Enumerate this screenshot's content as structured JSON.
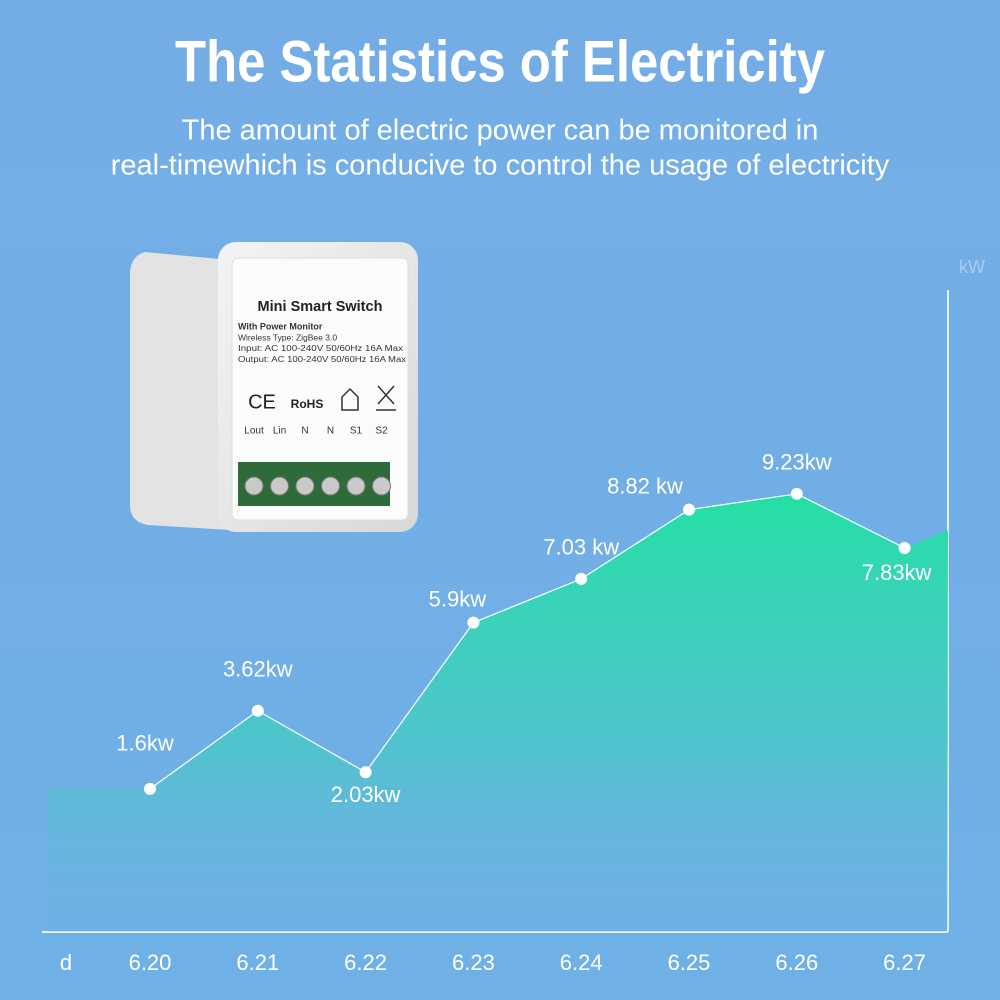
{
  "chart_data": {
    "type": "area",
    "title": "The Statistics of Electricity",
    "subtitle": [
      "The amount of electric power can be monitored in",
      "real-timewhich is conducive to control the usage of electricity"
    ],
    "x_label": "d",
    "y_label": "kW",
    "categories": [
      "6.20",
      "6.21",
      "6.22",
      "6.23",
      "6.24",
      "6.25",
      "6.26",
      "6.27"
    ],
    "values": [
      1.6,
      3.62,
      2.03,
      5.9,
      7.03,
      8.82,
      9.23,
      7.83
    ],
    "value_labels": [
      "1.6kw",
      "3.62kw",
      "2.03kw",
      "5.9kw",
      "7.03 kw",
      "8.82 kw",
      "9.23kw",
      "7.83kw"
    ],
    "color": "#1fe3a0",
    "ylim": [
      -2.1,
      14.5
    ]
  },
  "device": {
    "name": "Mini Smart Switch",
    "lines": [
      "With Power Monitor",
      "Wireless Type: ZigBee 3.0",
      "Input: AC 100-240V 50/60Hz 16A Max",
      "Output: AC 100-240V 50/60Hz 16A Max"
    ],
    "marks": [
      "CE",
      "RoHS"
    ],
    "terminals": [
      "Lout",
      "Lin",
      "N",
      "N",
      "S1",
      "S2"
    ]
  }
}
